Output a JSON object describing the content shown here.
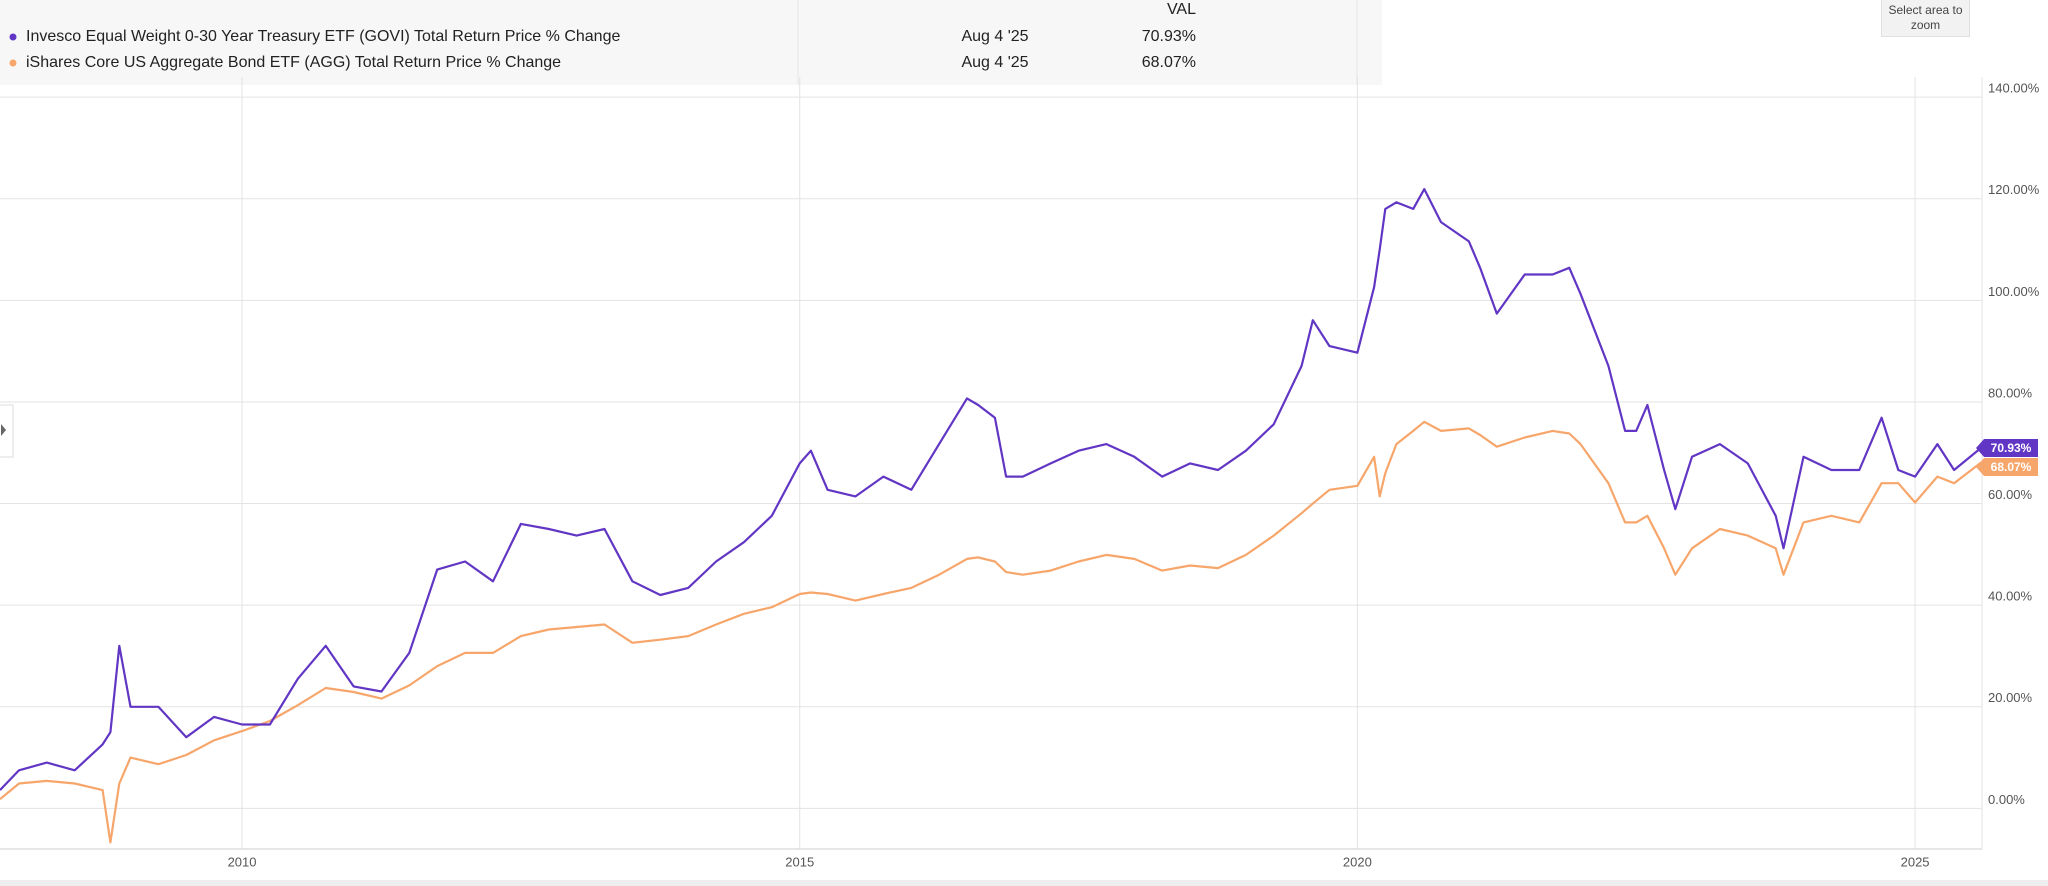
{
  "chart_data": {
    "type": "line",
    "value_column_header": "VAL",
    "zoom_button": "Select area to zoom",
    "x": [
      2007.83,
      2008.0,
      2008.25,
      2008.5,
      2008.75,
      2008.82,
      2008.9,
      2009.0,
      2009.25,
      2009.5,
      2009.75,
      2010.0,
      2010.25,
      2010.5,
      2010.75,
      2011.0,
      2011.25,
      2011.5,
      2011.75,
      2012.0,
      2012.25,
      2012.5,
      2012.75,
      2013.0,
      2013.25,
      2013.5,
      2013.75,
      2014.0,
      2014.25,
      2014.5,
      2014.75,
      2015.0,
      2015.1,
      2015.25,
      2015.5,
      2015.75,
      2016.0,
      2016.25,
      2016.5,
      2016.6,
      2016.75,
      2016.85,
      2017.0,
      2017.25,
      2017.5,
      2017.75,
      2018.0,
      2018.25,
      2018.5,
      2018.75,
      2019.0,
      2019.25,
      2019.5,
      2019.6,
      2019.75,
      2020.0,
      2020.15,
      2020.2,
      2020.25,
      2020.35,
      2020.5,
      2020.6,
      2020.75,
      2021.0,
      2021.1,
      2021.25,
      2021.5,
      2021.75,
      2021.9,
      2022.0,
      2022.25,
      2022.4,
      2022.5,
      2022.6,
      2022.75,
      2022.85,
      2023.0,
      2023.25,
      2023.5,
      2023.75,
      2023.82,
      2024.0,
      2024.25,
      2024.5,
      2024.7,
      2024.85,
      2025.0,
      2025.2,
      2025.35,
      2025.59
    ],
    "series": [
      {
        "name": "Invesco Equal Weight 0-30 Year Treasury ETF (GOVI) Total Return Price % Change",
        "color": "#6236c4",
        "date": "Aug 4 '25",
        "last_value_label": "70.93%",
        "values": [
          3.6,
          7.5,
          9,
          7.5,
          12.6,
          15,
          32,
          20,
          20,
          14,
          18,
          16.5,
          16.5,
          25.5,
          32,
          24,
          23,
          30.6,
          47,
          48.6,
          44.7,
          56,
          55,
          53.7,
          55,
          44.7,
          42,
          43.4,
          48.6,
          52.4,
          57.6,
          67.9,
          70.4,
          62.7,
          61.4,
          65.3,
          62.7,
          71.7,
          80.7,
          79.4,
          76.9,
          65.3,
          65.3,
          67.9,
          70.4,
          71.7,
          69.2,
          65.3,
          67.9,
          66.6,
          70.4,
          75.6,
          87.1,
          96.1,
          91,
          89.7,
          102.6,
          110,
          118,
          119.3,
          118,
          121.9,
          115.4,
          111.6,
          106.4,
          97.4,
          105.1,
          105.1,
          106.4,
          101.3,
          87.1,
          74.3,
          74.3,
          79.4,
          66.6,
          58.9,
          69.2,
          71.7,
          67.9,
          57.6,
          51.2,
          69.2,
          66.6,
          66.6,
          76.9,
          66.6,
          65.3,
          71.7,
          66.6,
          70.93
        ]
      },
      {
        "name": "iShares Core US Aggregate Bond ETF (AGG) Total Return Price % Change",
        "color": "#f7a66b",
        "date": "Aug 4 '25",
        "last_value_label": "68.07%",
        "values": [
          1.8,
          4.9,
          5.4,
          4.9,
          3.6,
          -6.7,
          4.9,
          10,
          8.7,
          10.5,
          13.4,
          15.2,
          17.2,
          20.3,
          23.7,
          22.9,
          21.6,
          24.2,
          28,
          30.6,
          30.6,
          33.9,
          35.2,
          35.7,
          36.2,
          32.6,
          33.2,
          33.9,
          36.2,
          38.3,
          39.6,
          42.2,
          42.5,
          42.2,
          40.9,
          42.2,
          43.4,
          46,
          49.1,
          49.4,
          48.6,
          46.5,
          46,
          46.8,
          48.6,
          49.9,
          49.1,
          46.8,
          47.8,
          47.3,
          49.9,
          53.7,
          58.1,
          60,
          62.7,
          63.5,
          69.2,
          61.4,
          66,
          71.7,
          74.3,
          76.1,
          74.3,
          74.8,
          73.5,
          71.2,
          73,
          74.3,
          73.8,
          71.7,
          64,
          56.3,
          56.3,
          57.6,
          51.2,
          46,
          51.2,
          55,
          53.7,
          51.2,
          46,
          56.3,
          57.6,
          56.3,
          64,
          64,
          60.2,
          65.3,
          64,
          68.07
        ]
      }
    ],
    "xlim": [
      2007.83,
      2025.6
    ],
    "xticks": [
      2010,
      2015,
      2020,
      2025
    ],
    "ylim": [
      -8,
      142
    ],
    "yticks": [
      {
        "value": 0,
        "label": "0.00%"
      },
      {
        "value": 20,
        "label": "20.00%"
      },
      {
        "value": 40,
        "label": "40.00%"
      },
      {
        "value": 60,
        "label": "60.00%"
      },
      {
        "value": 80,
        "label": "80.00%"
      },
      {
        "value": 100,
        "label": "100.00%"
      },
      {
        "value": 120,
        "label": "120.00%"
      },
      {
        "value": 140,
        "label": "140.00%"
      }
    ],
    "grid": true
  }
}
